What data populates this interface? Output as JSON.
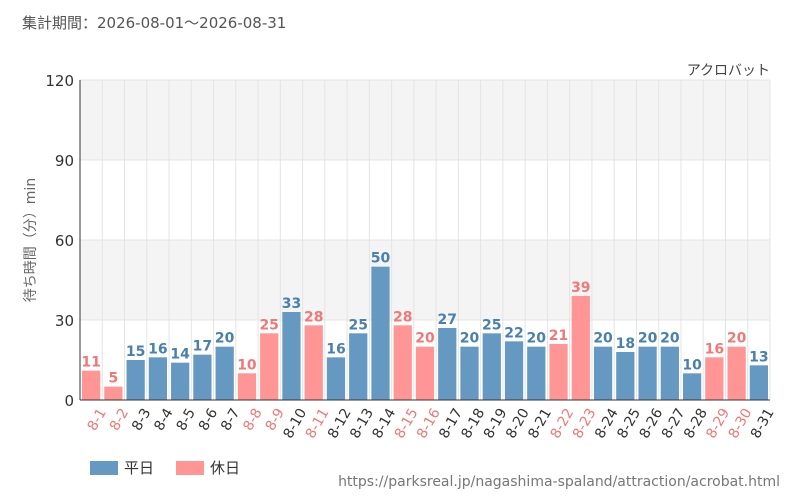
{
  "header": {
    "period": "集計期間：2026-08-01～2026-08-31",
    "attraction": "アクロバット"
  },
  "footer": {
    "url": "https://parksreal.jp/nagashima-spaland/attraction/acrobat.html"
  },
  "colors": {
    "weekday": "#6599c2",
    "holiday": "#ff9595",
    "weekday_text": "#4a80ac",
    "holiday_text": "#f07878",
    "band": "#f4f4f4",
    "grid": "#e4e4e4",
    "axis": "#333333"
  },
  "chart_data": {
    "type": "bar",
    "ylabel": "待ち時間（分）min",
    "ylim": [
      0,
      120
    ],
    "yticks": [
      0,
      30,
      60,
      90,
      120
    ],
    "categories": [
      "8-1",
      "8-2",
      "8-3",
      "8-4",
      "8-5",
      "8-6",
      "8-7",
      "8-8",
      "8-9",
      "8-10",
      "8-11",
      "8-12",
      "8-13",
      "8-14",
      "8-15",
      "8-16",
      "8-17",
      "8-18",
      "8-19",
      "8-20",
      "8-21",
      "8-22",
      "8-23",
      "8-24",
      "8-25",
      "8-26",
      "8-27",
      "8-28",
      "8-29",
      "8-30",
      "8-31"
    ],
    "values": [
      11,
      5,
      15,
      16,
      14,
      17,
      20,
      10,
      25,
      33,
      28,
      16,
      25,
      50,
      28,
      20,
      27,
      20,
      25,
      22,
      20,
      21,
      39,
      20,
      18,
      20,
      20,
      10,
      16,
      20,
      13
    ],
    "day_type": [
      "holiday",
      "holiday",
      "weekday",
      "weekday",
      "weekday",
      "weekday",
      "weekday",
      "holiday",
      "holiday",
      "weekday",
      "holiday",
      "weekday",
      "weekday",
      "weekday",
      "holiday",
      "holiday",
      "weekday",
      "weekday",
      "weekday",
      "weekday",
      "weekday",
      "holiday",
      "holiday",
      "weekday",
      "weekday",
      "weekday",
      "weekday",
      "weekday",
      "holiday",
      "holiday",
      "weekday"
    ],
    "legend": [
      {
        "key": "weekday",
        "label": "平日"
      },
      {
        "key": "holiday",
        "label": "休日"
      }
    ],
    "legend_position": "bottom-left",
    "grid": true
  }
}
